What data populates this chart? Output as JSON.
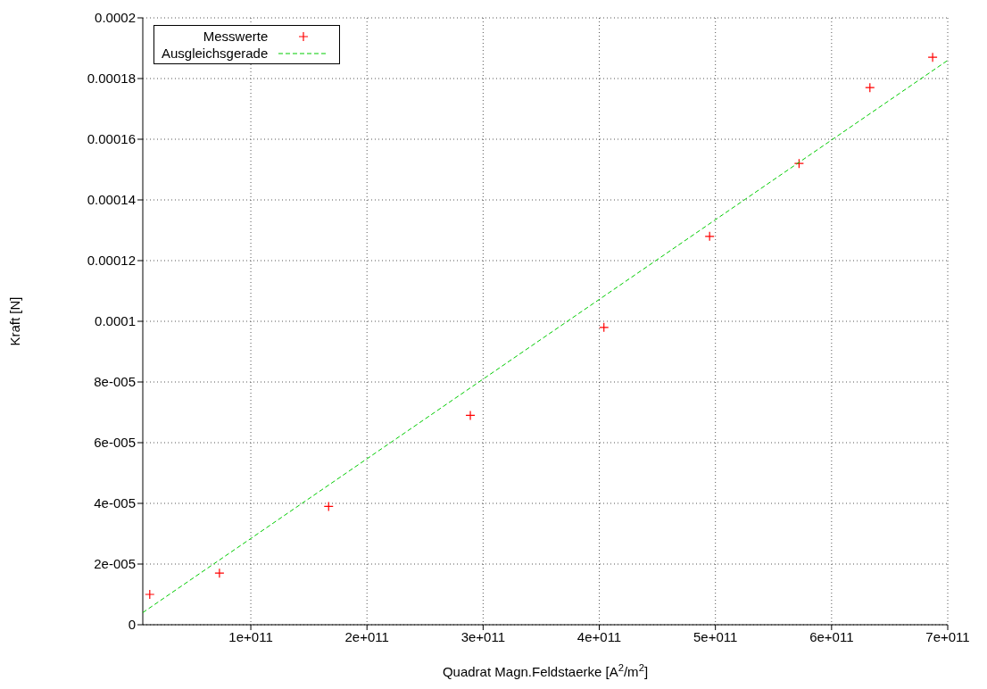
{
  "chart_data": {
    "type": "scatter",
    "xlabel": "Quadrat Magn.Feldstaerke [A$^{2}$/m$^{2}$]",
    "ylabel": "Kraft [N]",
    "series": [
      {
        "name": "Messwerte",
        "color": "#ff0000",
        "marker": "cross",
        "x": [
          13000000000.0,
          73000000000.0,
          167000000000.0,
          289000000000.0,
          404000000000.0,
          495000000000.0,
          572000000000.0,
          633000000000.0,
          687000000000.0
        ],
        "values": [
          1e-05,
          1.7e-05,
          3.9e-05,
          6.9e-05,
          9.8e-05,
          0.000128,
          0.000152,
          0.000177,
          0.000187
        ]
      },
      {
        "name": "Ausgleichsgerade",
        "type": "line",
        "color": "#00cc00",
        "line_style": "dashed",
        "marker": "none",
        "x": [
          7000000000.0,
          700000000000.0
        ],
        "values": [
          4e-06,
          0.000186
        ]
      }
    ],
    "xlim": [
      7000000000.0,
      700000000000.0
    ],
    "xticks": [
      {
        "value": 100000000000.0,
        "label": "1e+011"
      },
      {
        "value": 200000000000.0,
        "label": "2e+011"
      },
      {
        "value": 300000000000.0,
        "label": "3e+011"
      },
      {
        "value": 400000000000.0,
        "label": "4e+011"
      },
      {
        "value": 500000000000.0,
        "label": "5e+011"
      },
      {
        "value": 600000000000.0,
        "label": "6e+011"
      },
      {
        "value": 700000000000.0,
        "label": "7e+011"
      }
    ],
    "ylim": [
      0,
      0.0002
    ],
    "yticks": [
      0,
      {
        "value": 2e-05,
        "label": "2e-005"
      },
      {
        "value": 4e-05,
        "label": "4e-005"
      },
      {
        "value": 6e-05,
        "label": "6e-005"
      },
      {
        "value": 8e-05,
        "label": "8e-005"
      },
      0.0001,
      0.00012,
      0.00014,
      0.00016,
      0.00018,
      0.0002
    ],
    "grid": true,
    "legend": "top left"
  }
}
